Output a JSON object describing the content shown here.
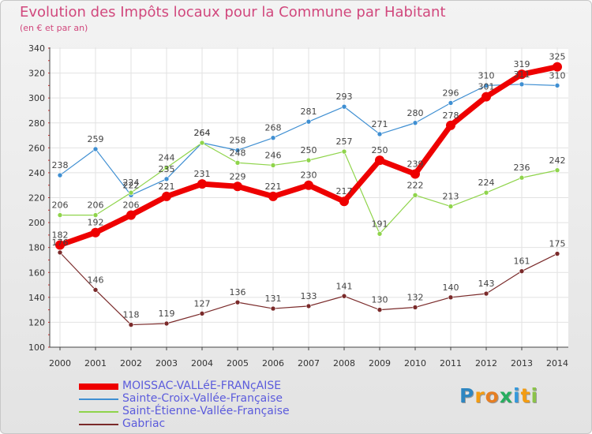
{
  "header": {
    "title": "Evolution des Impôts locaux pour la Commune par Habitant",
    "subtitle": "(en € et par an)"
  },
  "logo": {
    "letters": [
      {
        "ch": "P",
        "color": "#2e86c1"
      },
      {
        "ch": "r",
        "color": "#f39c12"
      },
      {
        "ch": "o",
        "color": "#e67e22"
      },
      {
        "ch": "x",
        "color": "#27ae60"
      },
      {
        "ch": "i",
        "color": "#3498db"
      },
      {
        "ch": "t",
        "color": "#f39c12"
      },
      {
        "ch": "i",
        "color": "#8bc34a"
      }
    ]
  },
  "chart_data": {
    "type": "line",
    "title": "Evolution des Impôts locaux pour la Commune par Habitant",
    "subtitle": "(en € et par an)",
    "xlabel": "",
    "ylabel": "",
    "ylim": [
      100,
      340
    ],
    "yticks": [
      100,
      120,
      140,
      160,
      180,
      200,
      220,
      240,
      260,
      280,
      300,
      320,
      340
    ],
    "categories": [
      "2000",
      "2001",
      "2002",
      "2003",
      "2004",
      "2005",
      "2006",
      "2007",
      "2008",
      "2009",
      "2010",
      "2011",
      "2012",
      "2013",
      "2014"
    ],
    "grid": true,
    "legend_position": "bottom-left",
    "series": [
      {
        "name": "MOISSAC-VALLéE-FRANçAISE",
        "color": "#ee0000",
        "values": [
          182,
          192,
          206,
          221,
          231,
          229,
          221,
          230,
          217,
          250,
          239,
          278,
          301,
          319,
          325
        ],
        "labels": [
          "182",
          "192",
          "206",
          "221",
          "231",
          "229",
          "221",
          "230",
          "217",
          "250",
          "239",
          "278",
          "301",
          "319",
          "325"
        ],
        "emphasis": true
      },
      {
        "name": "Sainte-Croix-Vallée-Française",
        "color": "#3f8fd2",
        "values": [
          238,
          259,
          222,
          235,
          264,
          258,
          268,
          281,
          293,
          271,
          280,
          296,
          310,
          311,
          310
        ],
        "labels": [
          "238",
          "259",
          "222",
          "235",
          "264",
          "258",
          "268",
          "281",
          "293",
          "271",
          "280",
          "296",
          "310",
          "311",
          "310"
        ],
        "emphasis": false
      },
      {
        "name": "Saint-Étienne-Vallée-Française",
        "color": "#8fd44b",
        "values": [
          206,
          206,
          224,
          244,
          264,
          248,
          246,
          250,
          257,
          191,
          222,
          213,
          224,
          236,
          242
        ],
        "labels": [
          "206",
          "206",
          "224",
          "244",
          "264",
          "248",
          "246",
          "250",
          "257",
          "191",
          "222",
          "213",
          "224",
          "236",
          "242"
        ],
        "emphasis": false
      },
      {
        "name": "Gabriac",
        "color": "#7a2a2a",
        "values": [
          176,
          146,
          118,
          119,
          127,
          136,
          131,
          133,
          141,
          130,
          132,
          140,
          143,
          161,
          175
        ],
        "labels": [
          "176",
          "146",
          "118",
          "119",
          "127",
          "136",
          "131",
          "133",
          "141",
          "130",
          "132",
          "140",
          "143",
          "161",
          "175"
        ],
        "emphasis": false
      }
    ]
  }
}
